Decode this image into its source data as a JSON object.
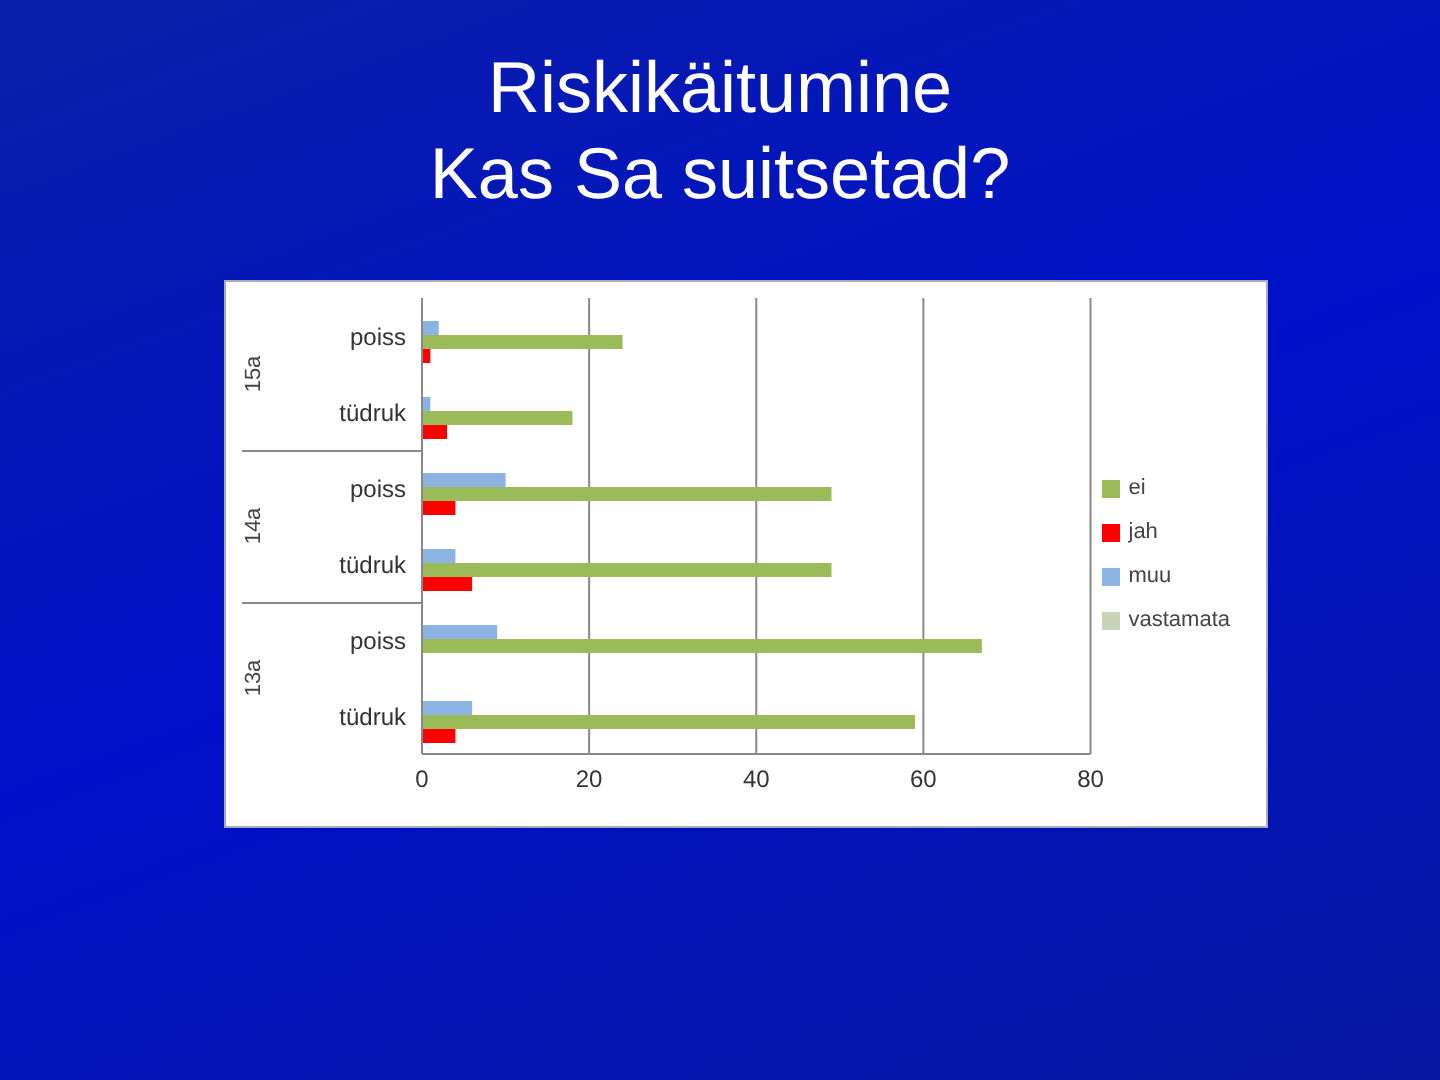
{
  "chart_data": {
    "type": "bar",
    "orientation": "horizontal",
    "title": "Riskikäitumine\nKas Sa suitsetad?",
    "categories": [
      "poiss",
      "tüdruk",
      "poiss",
      "tüdruk",
      "poiss",
      "tüdruk"
    ],
    "series": [
      {
        "name": "vastamata",
        "color": "#c9d3b8",
        "values": [
          0,
          0,
          0,
          0,
          0,
          0
        ]
      },
      {
        "name": "muu",
        "color": "#8db3e2",
        "values": [
          2,
          1,
          10,
          4,
          9,
          6
        ]
      },
      {
        "name": "ei",
        "color": "#9bbb59",
        "values": [
          24,
          18,
          49,
          49,
          67,
          59
        ]
      },
      {
        "name": "jah",
        "color": "#ff0000",
        "values": [
          1,
          3,
          4,
          6,
          0,
          4
        ]
      }
    ],
    "xlim": [
      0,
      80
    ],
    "xticks": [
      0,
      20,
      40,
      60,
      80
    ],
    "grid": "x",
    "legend": "right",
    "annotations": [
      "15a",
      "14a",
      "13a"
    ]
  }
}
